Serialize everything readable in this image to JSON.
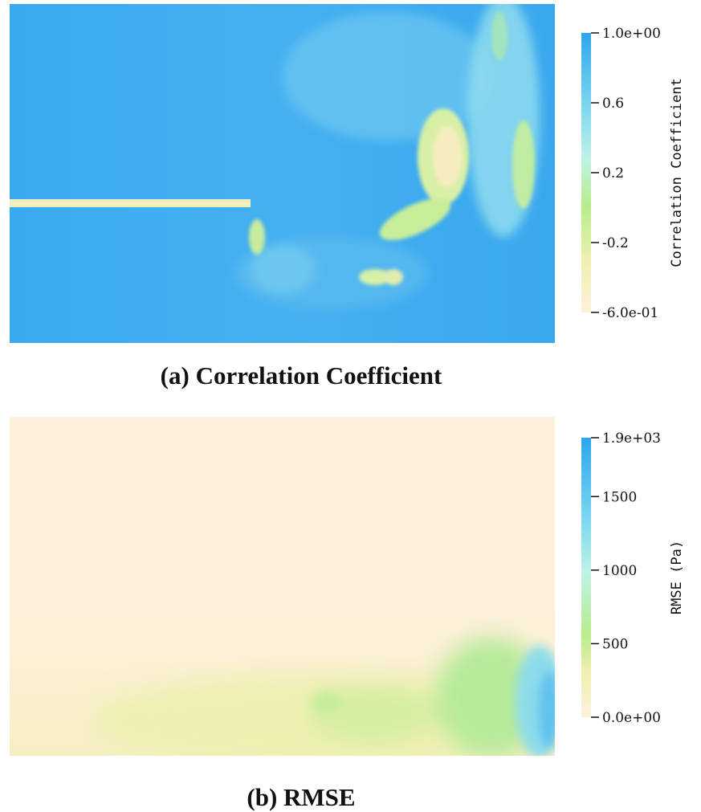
{
  "chart_data": [
    {
      "type": "heatmap",
      "caption": "(a) Correlation Coefficient",
      "colorbar": {
        "title": "Correlation Coefficient",
        "range": [
          -0.6,
          1.0
        ],
        "ticks": [
          {
            "value": 1.0,
            "label": "1.0e+00"
          },
          {
            "value": 0.6,
            "label": "0.6"
          },
          {
            "value": 0.2,
            "label": "0.2"
          },
          {
            "value": -0.2,
            "label": "-0.2"
          },
          {
            "value": -0.6,
            "label": "-6.0e-01"
          }
        ],
        "colors": [
          "#fdf0dc",
          "#f0f0b0",
          "#b8ec8c",
          "#bff2e6",
          "#79d4f0",
          "#2ea6ee"
        ]
      }
    },
    {
      "type": "heatmap",
      "caption": "(b) RMSE",
      "colorbar": {
        "title": "RMSE (Pa)",
        "range": [
          0,
          1900
        ],
        "ticks": [
          {
            "value": 1900,
            "label": "1.9e+03"
          },
          {
            "value": 1500,
            "label": "1500"
          },
          {
            "value": 1000,
            "label": "1000"
          },
          {
            "value": 500,
            "label": "500"
          },
          {
            "value": 0,
            "label": "0.0e+00"
          }
        ],
        "colors": [
          "#fdf0dc",
          "#f0f0b0",
          "#b8ec8c",
          "#bff2e6",
          "#79d4f0",
          "#2ea6ee"
        ]
      }
    }
  ]
}
